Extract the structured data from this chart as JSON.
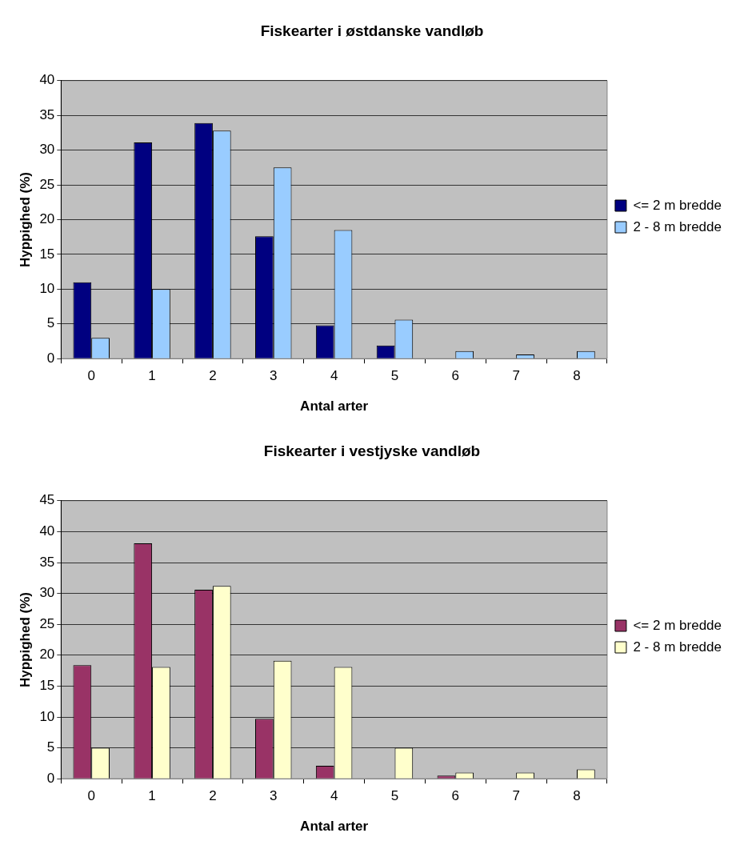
{
  "chart_data": [
    {
      "type": "bar",
      "title": "Fiskearter i østdanske vandløb",
      "xlabel": "Antal arter",
      "ylabel": "Hyppighed (%)",
      "categories": [
        "0",
        "1",
        "2",
        "3",
        "4",
        "5",
        "6",
        "7",
        "8"
      ],
      "series": [
        {
          "name": "<= 2 m bredde",
          "color": "#000080",
          "values": [
            11,
            31.1,
            33.9,
            17.6,
            4.8,
            1.9,
            0,
            0,
            0
          ]
        },
        {
          "name": "2 - 8 m bredde",
          "color": "#99ccff",
          "values": [
            3,
            10,
            32.8,
            27.5,
            18.5,
            5.6,
            1.1,
            0.6,
            1.1
          ]
        }
      ],
      "ylim": [
        0,
        40
      ],
      "yticks": [
        0,
        5,
        10,
        15,
        20,
        25,
        30,
        35,
        40
      ],
      "grid": "y",
      "legend": "right"
    },
    {
      "type": "bar",
      "title": "Fiskearter i vestjyske vandløb",
      "xlabel": "Antal arter",
      "ylabel": "Hyppighed (%)",
      "categories": [
        "0",
        "1",
        "2",
        "3",
        "4",
        "5",
        "6",
        "7",
        "8"
      ],
      "series": [
        {
          "name": "<= 2 m bredde",
          "color": "#993366",
          "values": [
            18.4,
            38.1,
            30.6,
            9.7,
            2.1,
            0,
            0.5,
            0,
            0
          ]
        },
        {
          "name": "2 - 8 m bredde",
          "color": "#ffffcc",
          "values": [
            5,
            18.1,
            31.2,
            19.1,
            18.1,
            5,
            1,
            1,
            1.5
          ]
        }
      ],
      "ylim": [
        0,
        45
      ],
      "yticks": [
        0,
        5,
        10,
        15,
        20,
        25,
        30,
        35,
        40,
        45
      ],
      "grid": "y",
      "legend": "right"
    }
  ]
}
